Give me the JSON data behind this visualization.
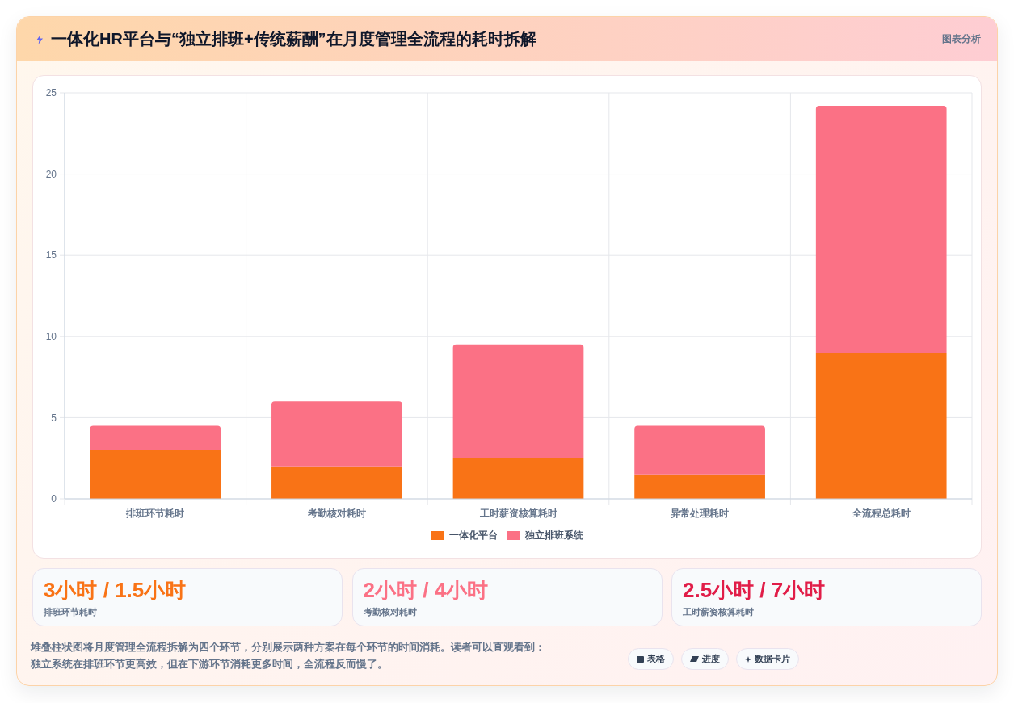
{
  "chart_data": {
    "type": "bar",
    "title": "一体化HR平台与“独立排班+传统薪酬”在月度管理全流程的耗时拆解",
    "categories": [
      "排班环节耗时",
      "考勤核对耗时",
      "工时薪资核算耗时",
      "异常处理耗时",
      "全流程总耗时"
    ],
    "series": [
      {
        "name": "一体化平台",
        "color": "#f97316",
        "values": [
          3,
          2,
          2.5,
          1.5,
          9
        ]
      },
      {
        "name": "独立排班系统",
        "color": "#fb7185",
        "values": [
          1.5,
          4,
          7,
          3,
          15.2
        ]
      }
    ],
    "stacked": true,
    "ylim": [
      0,
      25
    ],
    "yticks": [
      0,
      5,
      10,
      15,
      20,
      25
    ],
    "grid": true,
    "legend": "bottom",
    "annotations": [
      "图表分析",
      "3小时 / 1.5小时",
      "排班环节耗时",
      "2小时 / 4小时",
      "考勤核对耗时",
      "2.5小时 / 7小时",
      "工时薪资核算耗时",
      "堆叠柱状图将月度管理全流程拆解为四个环节，分别展示两种方案在每个环节的时间消耗。读者可以直观看到：独立系统在排班环节更高效，但在下游环节消耗更多时间，全流程反而慢了。",
      "表格",
      "进度",
      "数据卡片"
    ]
  }
}
